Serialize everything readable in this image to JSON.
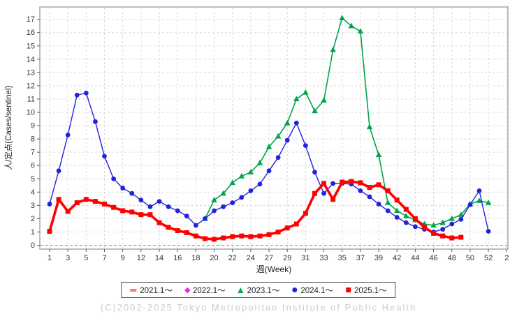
{
  "chart_data": {
    "type": "line",
    "title": "",
    "xlabel": "週(Week)",
    "ylabel": "人/定点(Cases/sentinel)",
    "ylim": [
      0,
      17
    ],
    "y_ticks": [
      0,
      1,
      2,
      3,
      4,
      5,
      6,
      7,
      8,
      9,
      10,
      11,
      12,
      13,
      14,
      15,
      16,
      17
    ],
    "x_tick_labels": [
      "1",
      "3",
      "5",
      "7",
      "9",
      "12",
      "14",
      "16",
      "18",
      "20",
      "22",
      "24",
      "27",
      "29",
      "31",
      "33",
      "35",
      "37",
      "39",
      "42",
      "44",
      "46",
      "48",
      "50",
      "52",
      "2"
    ],
    "x_tick_positions": [
      1,
      3,
      5,
      7,
      9,
      11,
      13,
      15,
      17,
      19,
      21,
      23,
      25,
      27,
      29,
      31,
      33,
      35,
      37,
      39,
      41,
      43,
      45,
      47,
      49,
      51
    ],
    "grid": true,
    "legend_position": "bottom",
    "zero_line_color": "#8888ee",
    "grid_color": "#d9d9d9",
    "frame_color": "#77778a",
    "tick_text_color": "#333333",
    "series": [
      {
        "name": "2021.1～",
        "color": "#fa8072",
        "marker": "dash",
        "start_position": 1,
        "values": []
      },
      {
        "name": "2022.1～",
        "color": "#e629e6",
        "marker": "diamond",
        "start_position": 1,
        "values": []
      },
      {
        "name": "2023.1～",
        "color": "#00a44a",
        "marker": "triangle",
        "line_width": 1.6,
        "start_position": 18,
        "values": [
          2.0,
          3.4,
          3.9,
          4.7,
          5.2,
          5.5,
          6.2,
          7.4,
          8.2,
          9.2,
          11.0,
          11.5,
          10.1,
          10.9,
          14.7,
          17.1,
          16.5,
          16.1,
          8.9,
          6.8,
          3.2,
          2.6,
          2.2,
          1.9,
          1.6,
          1.5,
          1.7,
          2.0,
          2.3,
          3.1,
          3.35,
          3.2
        ]
      },
      {
        "name": "2024.1～",
        "color": "#2222dd",
        "marker": "circle",
        "line_width": 1.4,
        "start_position": 1,
        "values": [
          3.1,
          5.6,
          8.3,
          11.3,
          11.45,
          9.3,
          6.7,
          5.0,
          4.3,
          3.9,
          3.4,
          2.9,
          3.3,
          2.9,
          2.6,
          2.2,
          1.5,
          2.0,
          2.6,
          2.9,
          3.2,
          3.6,
          4.1,
          4.6,
          5.6,
          6.6,
          7.9,
          9.2,
          7.5,
          5.5,
          3.9,
          4.65,
          4.65,
          4.6,
          4.1,
          3.65,
          3.1,
          2.6,
          2.1,
          1.7,
          1.4,
          1.2,
          1.0,
          1.2,
          1.6,
          1.95,
          3.05,
          4.1,
          1.05
        ]
      },
      {
        "name": "2025.1～",
        "color": "#ff0000",
        "marker": "square",
        "line_width": 3.6,
        "start_position": 1,
        "values": [
          1.05,
          3.45,
          2.55,
          3.2,
          3.45,
          3.3,
          3.1,
          2.85,
          2.6,
          2.5,
          2.3,
          2.3,
          1.7,
          1.35,
          1.1,
          0.95,
          0.7,
          0.5,
          0.45,
          0.55,
          0.65,
          0.7,
          0.65,
          0.7,
          0.8,
          1.0,
          1.3,
          1.6,
          2.4,
          3.9,
          4.65,
          3.45,
          4.75,
          4.8,
          4.7,
          4.35,
          4.55,
          4.1,
          3.4,
          2.7,
          2.0,
          1.35,
          0.9,
          0.7,
          0.55,
          0.6
        ]
      }
    ]
  },
  "legend": {
    "items": [
      {
        "label": "2021.1～",
        "marker": "dash",
        "color": "#fa8072"
      },
      {
        "label": "2022.1～",
        "marker": "diamond",
        "color": "#e629e6"
      },
      {
        "label": "2023.1～",
        "marker": "triangle",
        "color": "#00a44a"
      },
      {
        "label": "2024.1～",
        "marker": "circle",
        "color": "#2222dd"
      },
      {
        "label": "2025.1～",
        "marker": "square",
        "color": "#ff0000"
      }
    ]
  },
  "footer": {
    "copyright": "(C)2002-2025 Tokyo Metropolitan Institute of Public Health"
  }
}
